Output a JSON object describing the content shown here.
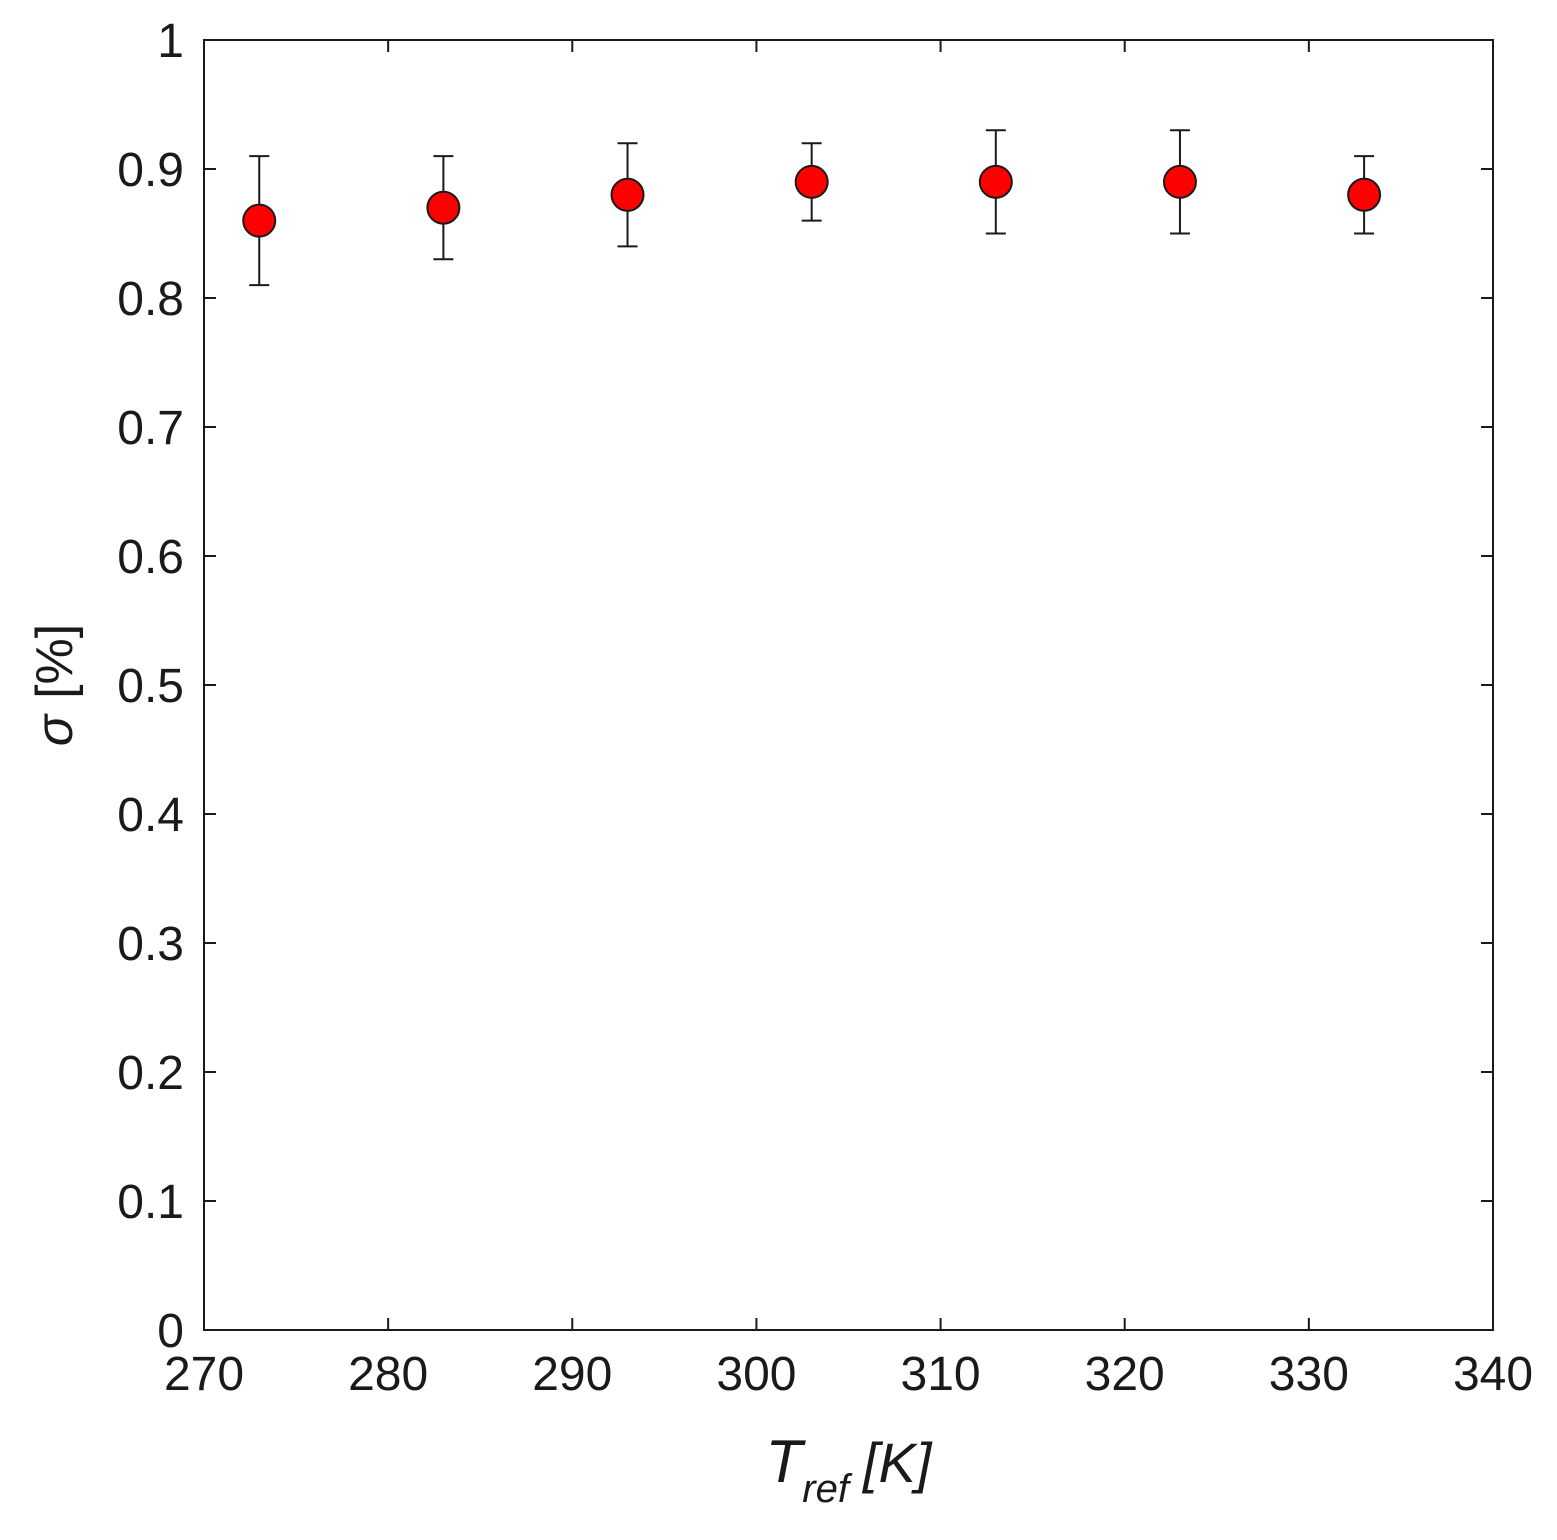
{
  "chart_data": {
    "type": "scatter",
    "xlabel": {
      "symbol": "T",
      "subscript": "ref",
      "unit": "[K]"
    },
    "ylabel": {
      "symbol": "σ",
      "unit": "[%]"
    },
    "xlim": [
      270,
      340
    ],
    "ylim": [
      0,
      1
    ],
    "xticks": [
      270,
      280,
      290,
      300,
      310,
      320,
      330,
      340
    ],
    "xtick_labels": [
      "270",
      "280",
      "290",
      "300",
      "310",
      "320",
      "330",
      "340"
    ],
    "yticks": [
      0,
      0.1,
      0.2,
      0.3,
      0.4,
      0.5,
      0.6,
      0.7,
      0.8,
      0.9,
      1
    ],
    "ytick_labels": [
      "0",
      "0.1",
      "0.2",
      "0.3",
      "0.4",
      "0.5",
      "0.6",
      "0.7",
      "0.8",
      "0.9",
      "1"
    ],
    "grid": false,
    "marker_color": "#ff0000",
    "points": [
      {
        "x": 273,
        "y": 0.86,
        "ylow": 0.81,
        "yhigh": 0.91
      },
      {
        "x": 283,
        "y": 0.87,
        "ylow": 0.83,
        "yhigh": 0.91
      },
      {
        "x": 293,
        "y": 0.88,
        "ylow": 0.84,
        "yhigh": 0.92
      },
      {
        "x": 303,
        "y": 0.89,
        "ylow": 0.86,
        "yhigh": 0.92
      },
      {
        "x": 313,
        "y": 0.89,
        "ylow": 0.85,
        "yhigh": 0.93
      },
      {
        "x": 323,
        "y": 0.89,
        "ylow": 0.85,
        "yhigh": 0.93
      },
      {
        "x": 333,
        "y": 0.88,
        "ylow": 0.85,
        "yhigh": 0.91
      }
    ]
  }
}
